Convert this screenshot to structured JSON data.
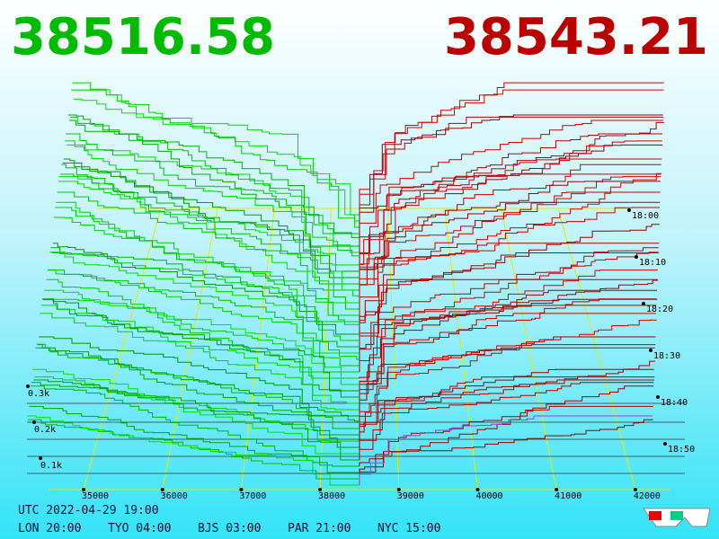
{
  "bid_price": "38516.58",
  "ask_price": "38543.21",
  "price_axis": [
    "35000",
    "36000",
    "37000",
    "38000",
    "39000",
    "40000",
    "41000",
    "42000"
  ],
  "size_axis": [
    "0.3k",
    "0.2k",
    "0.1k"
  ],
  "time_axis": [
    "18:00",
    "18:10",
    "18:20",
    "18:30",
    "18:40",
    "18:50"
  ],
  "clock": {
    "utc": "UTC 2022-04-29 19:00",
    "cities": [
      "LON 20:00",
      "TYO 04:00",
      "BJS 03:00",
      "PAR 21:00",
      "NYC 15:00"
    ]
  }
}
